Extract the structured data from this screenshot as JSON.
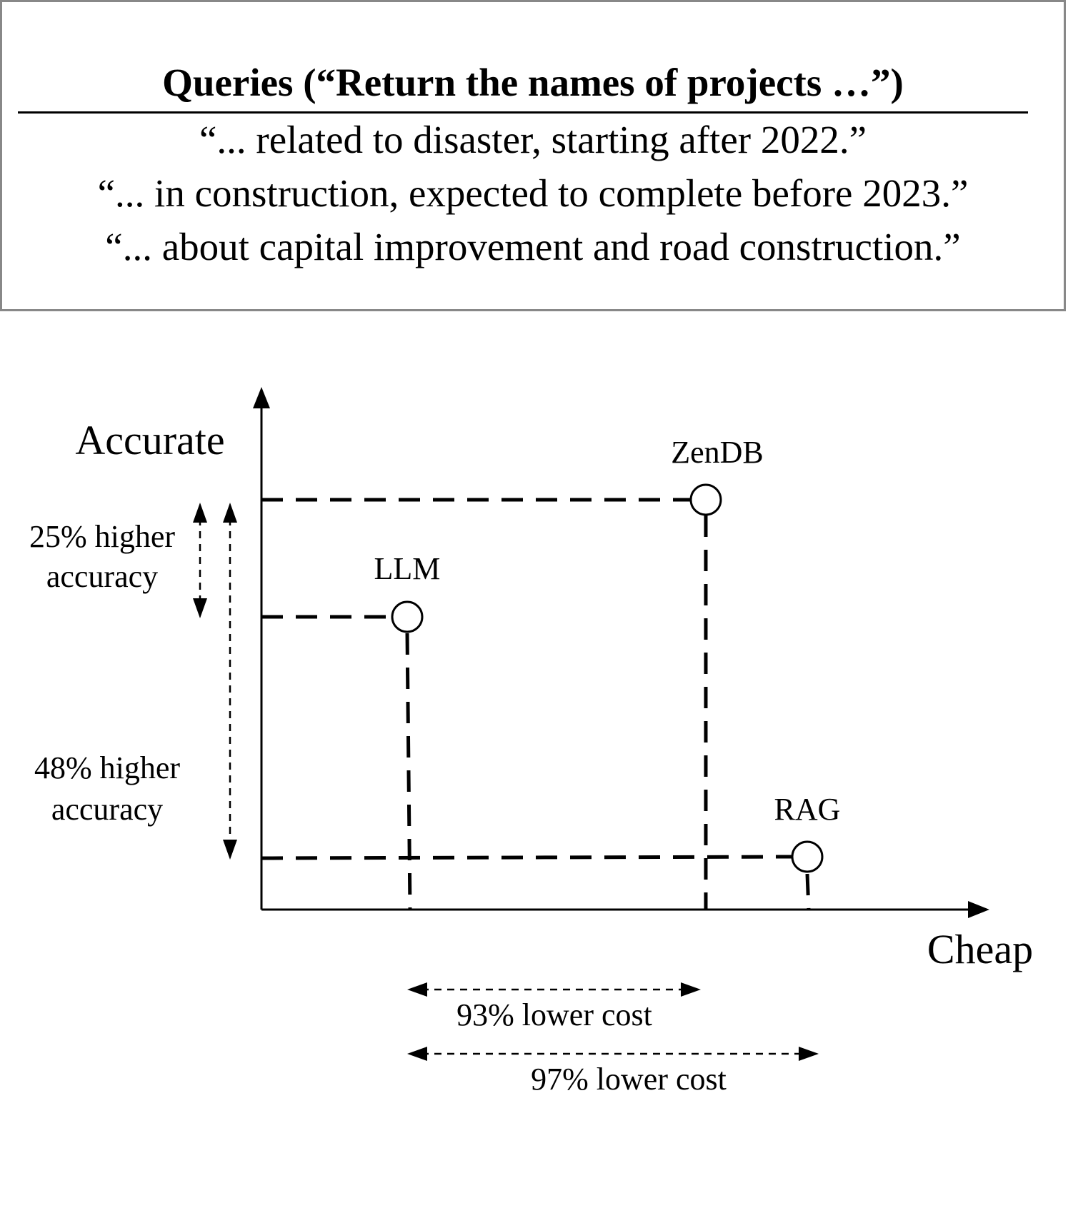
{
  "queries": {
    "title": "Queries (“Return the names of projects …”)",
    "lines": [
      "“... related to disaster, starting after 2022.”",
      "“... in construction, expected to complete before 2023.”",
      "“... about capital improvement and road construction.”"
    ]
  },
  "chart_data": {
    "type": "scatter",
    "xlabel": "Cheap",
    "ylabel": "Accurate",
    "points": [
      {
        "label": "LLM",
        "cheapness_rank": 1,
        "accuracy_rank": 2
      },
      {
        "label": "ZenDB",
        "cheapness_rank": 2,
        "accuracy_rank": 3
      },
      {
        "label": "RAG",
        "cheapness_rank": 3,
        "accuracy_rank": 1
      }
    ],
    "annotations": {
      "acc_25_line1": "25% higher",
      "acc_25_line2": "accuracy",
      "acc_48_line1": "48% higher",
      "acc_48_line2": "accuracy",
      "cost_93": "93% lower cost",
      "cost_97": "97% lower cost"
    }
  }
}
